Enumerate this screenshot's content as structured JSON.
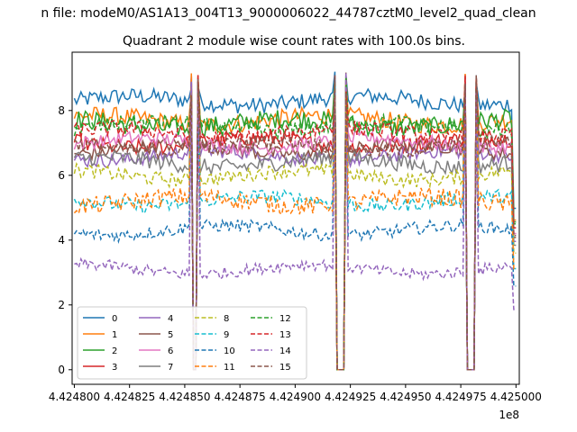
{
  "suptitle": "n file: modeM0/AS1A13_004T13_9000006022_44787cztM0_level2_quad_clean",
  "chart_data": {
    "type": "line",
    "title": "Quadrant 2 module wise count rates with 100.0s bins.",
    "xlabel": "",
    "ylabel": "",
    "x_offset_label": "1e8",
    "xlim": [
      4.424799,
      4.4250015
    ],
    "ylim": [
      -0.45,
      9.8
    ],
    "x_ticks": [
      4.4248,
      4.424825,
      4.42485,
      4.424875,
      4.4249,
      4.424925,
      4.42495,
      4.424975,
      4.425
    ],
    "x_tick_labels": [
      "4.424800",
      "4.424825",
      "4.424850",
      "4.424875",
      "4.424900",
      "4.424925",
      "4.424950",
      "4.424975",
      "4.425000"
    ],
    "y_ticks": [
      0,
      2,
      4,
      6,
      8
    ],
    "y_tick_labels": [
      "0",
      "2",
      "4",
      "6",
      "8"
    ],
    "x_start": 4.4248,
    "x_end": 4.425,
    "gaps": [
      [
        4.4248535,
        4.4248555
      ],
      [
        4.4249185,
        4.4249225
      ],
      [
        4.4249775,
        4.4249815
      ]
    ],
    "grid": false,
    "legend_position": "lower-left",
    "series": [
      {
        "name": "0",
        "level": 8.3,
        "amp": 0.25,
        "color": "#1f77b4",
        "dash": "solid"
      },
      {
        "name": "1",
        "level": 7.7,
        "amp": 0.28,
        "color": "#ff7f0e",
        "dash": "solid"
      },
      {
        "name": "2",
        "level": 7.6,
        "amp": 0.3,
        "color": "#2ca02c",
        "dash": "solid"
      },
      {
        "name": "3",
        "level": 7.0,
        "amp": 0.25,
        "color": "#d62728",
        "dash": "solid"
      },
      {
        "name": "4",
        "level": 6.6,
        "amp": 0.22,
        "color": "#9467bd",
        "dash": "solid"
      },
      {
        "name": "5",
        "level": 6.8,
        "amp": 0.22,
        "color": "#8c564b",
        "dash": "solid"
      },
      {
        "name": "6",
        "level": 7.0,
        "amp": 0.22,
        "color": "#e377c2",
        "dash": "solid"
      },
      {
        "name": "7",
        "level": 6.4,
        "amp": 0.25,
        "color": "#7f7f7f",
        "dash": "solid"
      },
      {
        "name": "8",
        "level": 6.0,
        "amp": 0.22,
        "color": "#bcbd22",
        "dash": "dashed"
      },
      {
        "name": "9",
        "level": 5.2,
        "amp": 0.22,
        "color": "#17becf",
        "dash": "dashed"
      },
      {
        "name": "10",
        "level": 4.3,
        "amp": 0.2,
        "color": "#1f77b4",
        "dash": "dashed"
      },
      {
        "name": "11",
        "level": 5.2,
        "amp": 0.28,
        "color": "#ff7f0e",
        "dash": "dashed"
      },
      {
        "name": "12",
        "level": 7.5,
        "amp": 0.25,
        "color": "#2ca02c",
        "dash": "dashed"
      },
      {
        "name": "13",
        "level": 7.3,
        "amp": 0.25,
        "color": "#d62728",
        "dash": "dashed"
      },
      {
        "name": "14",
        "level": 3.1,
        "amp": 0.18,
        "color": "#9467bd",
        "dash": "dashed"
      },
      {
        "name": "15",
        "level": 6.9,
        "amp": 0.22,
        "color": "#8c564b",
        "dash": "dashed"
      }
    ]
  }
}
